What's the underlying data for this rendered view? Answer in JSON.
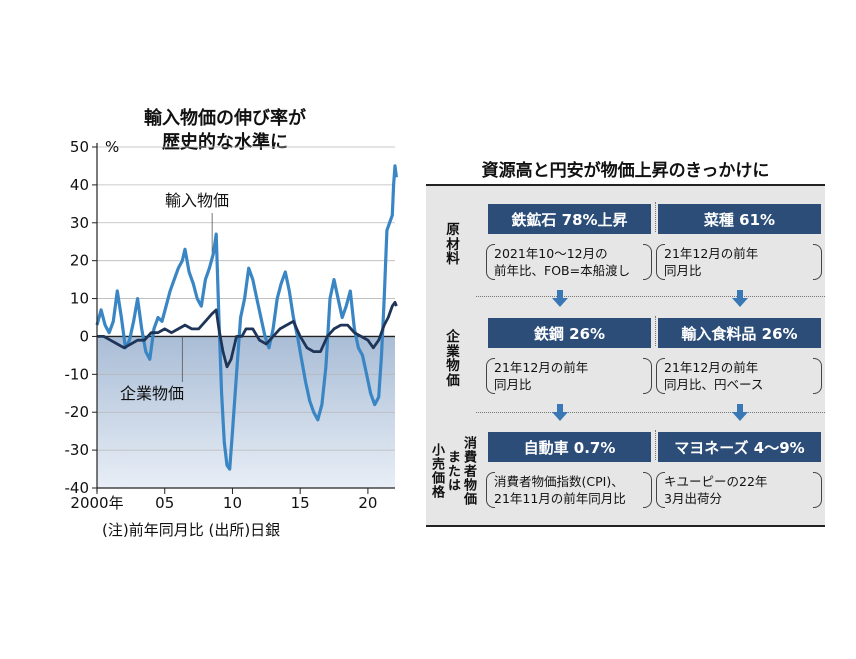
{
  "chart_data": {
    "type": "line",
    "title": [
      "輸入物価の伸び率が",
      "歴史的な水準に"
    ],
    "y_unit": "%",
    "ylim": [
      -40,
      50
    ],
    "y_ticks": [
      50,
      40,
      30,
      20,
      10,
      0,
      -10,
      -20,
      -30,
      -40
    ],
    "xlim": [
      2000,
      2022
    ],
    "x_ticks": [
      {
        "value": 2000,
        "label": "2000年"
      },
      {
        "value": 2005,
        "label": "05"
      },
      {
        "value": 2010,
        "label": "10"
      },
      {
        "value": 2015,
        "label": "15"
      },
      {
        "value": 2020,
        "label": "20"
      }
    ],
    "grid": true,
    "series": [
      {
        "name": "輸入物価",
        "color": "#3a86c4",
        "points": [
          [
            2000.0,
            3
          ],
          [
            2000.3,
            7
          ],
          [
            2000.6,
            3
          ],
          [
            2000.9,
            1
          ],
          [
            2001.2,
            4
          ],
          [
            2001.5,
            12
          ],
          [
            2001.8,
            5
          ],
          [
            2002.1,
            -3
          ],
          [
            2002.4,
            -1
          ],
          [
            2002.7,
            4
          ],
          [
            2003.0,
            10
          ],
          [
            2003.3,
            2
          ],
          [
            2003.6,
            -4
          ],
          [
            2003.9,
            -6
          ],
          [
            2004.2,
            2
          ],
          [
            2004.5,
            5
          ],
          [
            2004.8,
            4
          ],
          [
            2005.1,
            8
          ],
          [
            2005.4,
            12
          ],
          [
            2005.7,
            15
          ],
          [
            2006.0,
            18
          ],
          [
            2006.3,
            20
          ],
          [
            2006.5,
            23
          ],
          [
            2006.8,
            17
          ],
          [
            2007.1,
            14
          ],
          [
            2007.4,
            10
          ],
          [
            2007.7,
            8
          ],
          [
            2008.0,
            15
          ],
          [
            2008.3,
            18
          ],
          [
            2008.6,
            22
          ],
          [
            2008.8,
            27
          ],
          [
            2009.0,
            5
          ],
          [
            2009.2,
            -15
          ],
          [
            2009.4,
            -28
          ],
          [
            2009.6,
            -34
          ],
          [
            2009.8,
            -35
          ],
          [
            2010.0,
            -25
          ],
          [
            2010.3,
            -10
          ],
          [
            2010.6,
            5
          ],
          [
            2010.9,
            10
          ],
          [
            2011.2,
            18
          ],
          [
            2011.5,
            15
          ],
          [
            2011.8,
            10
          ],
          [
            2012.1,
            5
          ],
          [
            2012.4,
            0
          ],
          [
            2012.7,
            -3
          ],
          [
            2013.0,
            2
          ],
          [
            2013.3,
            10
          ],
          [
            2013.6,
            14
          ],
          [
            2013.9,
            17
          ],
          [
            2014.2,
            12
          ],
          [
            2014.5,
            5
          ],
          [
            2014.8,
            0
          ],
          [
            2015.1,
            -6
          ],
          [
            2015.4,
            -12
          ],
          [
            2015.7,
            -17
          ],
          [
            2016.0,
            -20
          ],
          [
            2016.3,
            -22
          ],
          [
            2016.6,
            -18
          ],
          [
            2016.9,
            -8
          ],
          [
            2017.2,
            10
          ],
          [
            2017.5,
            15
          ],
          [
            2017.8,
            10
          ],
          [
            2018.1,
            5
          ],
          [
            2018.4,
            8
          ],
          [
            2018.7,
            12
          ],
          [
            2019.0,
            2
          ],
          [
            2019.3,
            -3
          ],
          [
            2019.6,
            -5
          ],
          [
            2019.9,
            -10
          ],
          [
            2020.2,
            -15
          ],
          [
            2020.5,
            -18
          ],
          [
            2020.8,
            -16
          ],
          [
            2021.0,
            -5
          ],
          [
            2021.2,
            10
          ],
          [
            2021.4,
            28
          ],
          [
            2021.6,
            30
          ],
          [
            2021.8,
            32
          ],
          [
            2021.9,
            40
          ],
          [
            2022.0,
            45
          ],
          [
            2022.1,
            42
          ]
        ]
      },
      {
        "name": "企業物価",
        "color": "#1f3558",
        "points": [
          [
            2000.0,
            0
          ],
          [
            2000.5,
            0
          ],
          [
            2001.0,
            -1
          ],
          [
            2001.5,
            -2
          ],
          [
            2002.0,
            -3
          ],
          [
            2002.5,
            -2
          ],
          [
            2003.0,
            -1
          ],
          [
            2003.5,
            -1
          ],
          [
            2004.0,
            1
          ],
          [
            2004.5,
            1
          ],
          [
            2005.0,
            2
          ],
          [
            2005.5,
            1
          ],
          [
            2006.0,
            2
          ],
          [
            2006.5,
            3
          ],
          [
            2007.0,
            2
          ],
          [
            2007.5,
            2
          ],
          [
            2008.0,
            4
          ],
          [
            2008.5,
            6
          ],
          [
            2008.8,
            7
          ],
          [
            2009.0,
            2
          ],
          [
            2009.3,
            -4
          ],
          [
            2009.6,
            -8
          ],
          [
            2009.9,
            -6
          ],
          [
            2010.3,
            0
          ],
          [
            2010.7,
            0
          ],
          [
            2011.0,
            2
          ],
          [
            2011.5,
            2
          ],
          [
            2012.0,
            -1
          ],
          [
            2012.5,
            -2
          ],
          [
            2013.0,
            0
          ],
          [
            2013.5,
            2
          ],
          [
            2014.0,
            3
          ],
          [
            2014.5,
            4
          ],
          [
            2015.0,
            0
          ],
          [
            2015.5,
            -3
          ],
          [
            2016.0,
            -4
          ],
          [
            2016.5,
            -4
          ],
          [
            2017.0,
            0
          ],
          [
            2017.5,
            2
          ],
          [
            2018.0,
            3
          ],
          [
            2018.5,
            3
          ],
          [
            2019.0,
            1
          ],
          [
            2019.5,
            0
          ],
          [
            2020.0,
            -1
          ],
          [
            2020.4,
            -3
          ],
          [
            2020.8,
            -1
          ],
          [
            2021.2,
            3
          ],
          [
            2021.5,
            5
          ],
          [
            2021.8,
            8
          ],
          [
            2022.0,
            9
          ],
          [
            2022.1,
            8
          ]
        ]
      }
    ],
    "annotations": [
      "輸入物価",
      "企業物価"
    ],
    "note": "(注)前年同月比 (出所)日銀"
  },
  "panel": {
    "title": "資源高と円安が物価上昇のきっかけに",
    "rows": [
      {
        "label": [
          "原",
          "材",
          "料"
        ],
        "items": [
          {
            "head": "鉄鉱石 78%上昇",
            "note": [
              "2021年10～12月の",
              "前年比、FOB=本船渡し"
            ]
          },
          {
            "head": "菜種 61%",
            "note": [
              "21年12月の前年",
              "同月比"
            ]
          }
        ]
      },
      {
        "label": [
          "企",
          "業",
          "物",
          "価"
        ],
        "items": [
          {
            "head": "鉄鋼 26%",
            "note": [
              "21年12月の前年",
              "同月比"
            ]
          },
          {
            "head": "輸入食料品 26%",
            "note": [
              "21年12月の前年",
              "同月比、円ベース"
            ]
          }
        ]
      },
      {
        "label_cols": [
          [
            "小",
            "売",
            "価",
            "格"
          ],
          [
            "ま",
            "た",
            "は"
          ],
          [
            "消",
            "費",
            "者",
            "物",
            "価"
          ]
        ],
        "items": [
          {
            "head": "自動車 0.7%",
            "note": [
              "消費者物価指数(CPI)、",
              "21年11月の前年同月比"
            ]
          },
          {
            "head": "マヨネーズ 4～9%",
            "note": [
              "キユーピーの22年",
              "3月出荷分"
            ]
          }
        ]
      }
    ]
  }
}
